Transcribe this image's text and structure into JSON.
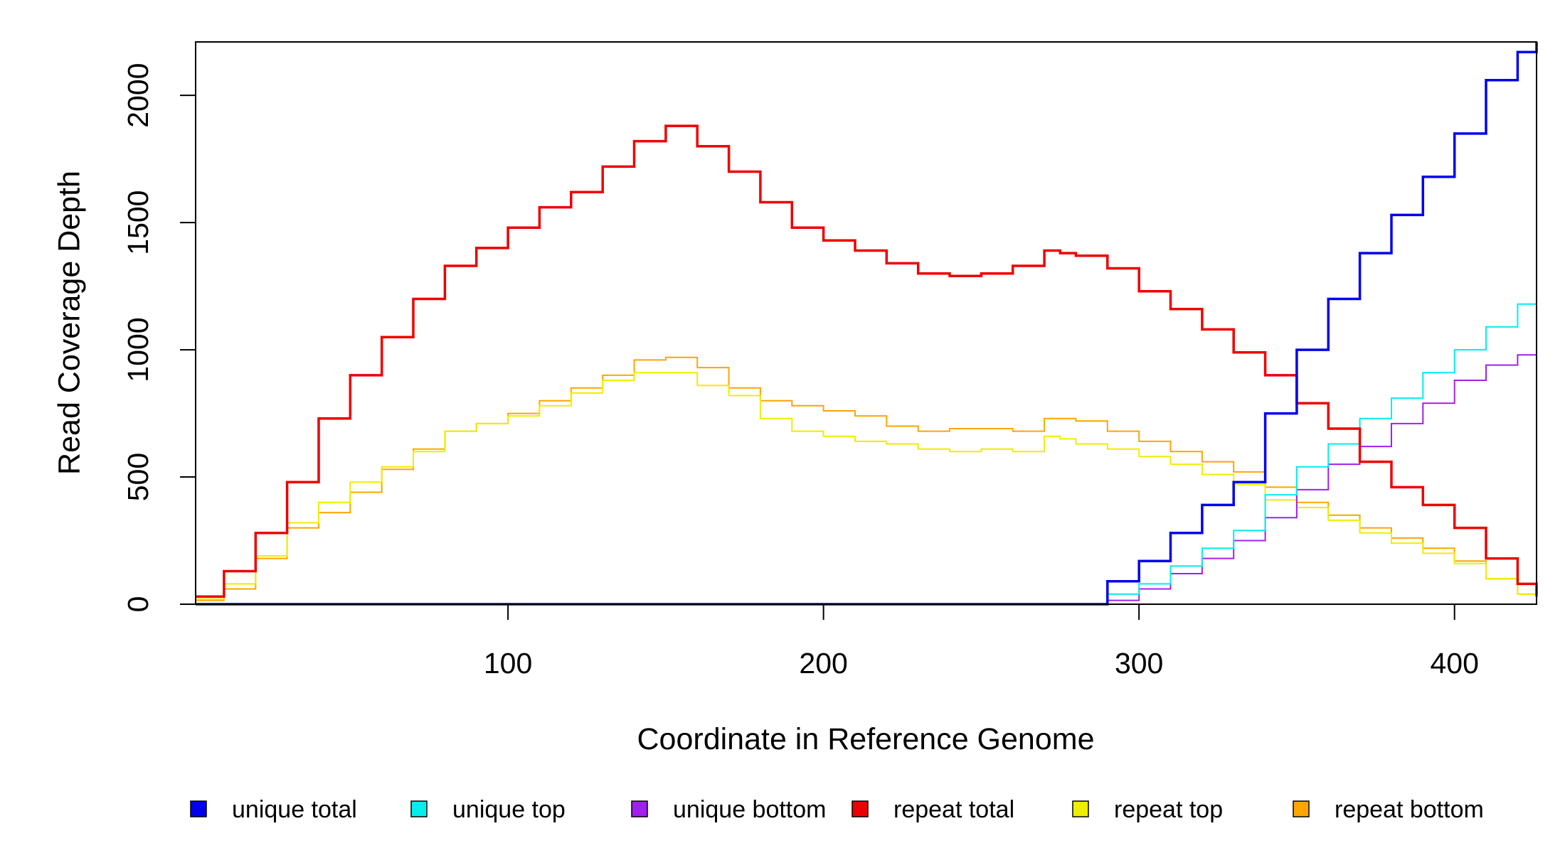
{
  "chart_data": {
    "type": "line",
    "title": "",
    "xlabel": "Coordinate in Reference Genome",
    "ylabel": "Read Coverage Depth",
    "xlim": [
      1,
      426
    ],
    "ylim": [
      0,
      2210
    ],
    "x_ticks": [
      100,
      200,
      300,
      400
    ],
    "y_ticks": [
      0,
      500,
      1000,
      1500,
      2000
    ],
    "grid": false,
    "legend_position": "bottom",
    "x": [
      1,
      10,
      20,
      30,
      40,
      50,
      60,
      70,
      80,
      90,
      100,
      110,
      120,
      130,
      140,
      150,
      160,
      170,
      180,
      190,
      200,
      210,
      220,
      230,
      240,
      250,
      260,
      270,
      275,
      280,
      290,
      300,
      310,
      320,
      330,
      340,
      350,
      360,
      370,
      380,
      390,
      400,
      410,
      420,
      426
    ],
    "series": [
      {
        "name": "unique total",
        "color": "#0000EE",
        "values": [
          0,
          0,
          0,
          0,
          0,
          0,
          0,
          0,
          0,
          0,
          0,
          0,
          0,
          0,
          0,
          0,
          0,
          0,
          0,
          0,
          0,
          0,
          0,
          0,
          0,
          0,
          0,
          0,
          0,
          0,
          90,
          170,
          280,
          390,
          480,
          750,
          1000,
          1200,
          1380,
          1530,
          1680,
          1850,
          2060,
          2170,
          2210
        ]
      },
      {
        "name": "unique top",
        "color": "#00EEEE",
        "values": [
          0,
          0,
          0,
          0,
          0,
          0,
          0,
          0,
          0,
          0,
          0,
          0,
          0,
          0,
          0,
          0,
          0,
          0,
          0,
          0,
          0,
          0,
          0,
          0,
          0,
          0,
          0,
          0,
          0,
          0,
          40,
          80,
          150,
          220,
          290,
          430,
          540,
          630,
          730,
          810,
          910,
          1000,
          1090,
          1180,
          1220
        ]
      },
      {
        "name": "unique bottom",
        "color": "#A020F0",
        "values": [
          0,
          0,
          0,
          0,
          0,
          0,
          0,
          0,
          0,
          0,
          0,
          0,
          0,
          0,
          0,
          0,
          0,
          0,
          0,
          0,
          0,
          0,
          0,
          0,
          0,
          0,
          0,
          0,
          0,
          0,
          15,
          60,
          120,
          180,
          250,
          340,
          450,
          550,
          620,
          710,
          790,
          880,
          940,
          980,
          990
        ]
      },
      {
        "name": "repeat total",
        "color": "#EE0000",
        "values": [
          30,
          130,
          280,
          480,
          730,
          900,
          1050,
          1200,
          1330,
          1400,
          1480,
          1560,
          1620,
          1720,
          1820,
          1880,
          1800,
          1700,
          1580,
          1480,
          1430,
          1390,
          1340,
          1300,
          1290,
          1300,
          1330,
          1390,
          1380,
          1370,
          1320,
          1230,
          1160,
          1080,
          990,
          900,
          790,
          690,
          560,
          460,
          390,
          300,
          180,
          80,
          30
        ]
      },
      {
        "name": "repeat top",
        "color": "#EEEE00",
        "values": [
          20,
          80,
          190,
          320,
          400,
          480,
          540,
          600,
          680,
          710,
          740,
          780,
          830,
          880,
          910,
          910,
          860,
          820,
          730,
          680,
          660,
          640,
          630,
          610,
          600,
          610,
          600,
          660,
          650,
          630,
          610,
          580,
          550,
          510,
          470,
          410,
          380,
          330,
          280,
          240,
          200,
          160,
          100,
          40,
          15
        ]
      },
      {
        "name": "repeat bottom",
        "color": "#FFA500",
        "values": [
          15,
          60,
          180,
          300,
          360,
          440,
          530,
          610,
          680,
          710,
          750,
          800,
          850,
          900,
          960,
          970,
          930,
          850,
          800,
          780,
          760,
          740,
          700,
          680,
          690,
          690,
          680,
          730,
          730,
          720,
          680,
          640,
          600,
          560,
          520,
          460,
          400,
          350,
          300,
          260,
          220,
          170,
          100,
          40,
          15
        ]
      }
    ]
  }
}
